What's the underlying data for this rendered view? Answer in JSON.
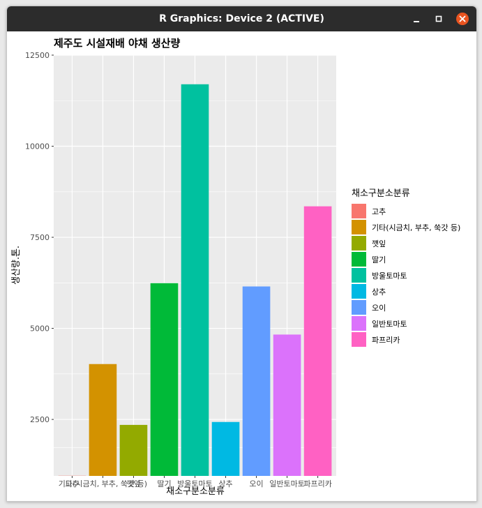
{
  "window": {
    "title": "R Graphics: Device 2 (ACTIVE)",
    "controls": [
      "minimize-icon",
      "maximize-icon",
      "close-icon"
    ],
    "colors": {
      "titlebar": "#2c2c2c",
      "close": "#e95420"
    }
  },
  "chart_data": {
    "type": "bar",
    "title": "제주도 시설재배 야채 생산량",
    "xlabel": "채소구분소분류",
    "ylabel": "생산량.톤.",
    "legend_title": "채소구분소분류",
    "legend_position": "right",
    "grid": true,
    "ylim": [
      950,
      12500
    ],
    "yticks": [
      2500,
      5000,
      7500,
      10000,
      12500
    ],
    "categories": [
      "고추",
      "기타(시금치, 부추, 쑥갓 등)",
      "깻잎",
      "딸기",
      "방울토마토",
      "상추",
      "오이",
      "일반토마토",
      "파프리카"
    ],
    "values": [
      955,
      4020,
      2350,
      6240,
      11700,
      2430,
      6150,
      4830,
      8350
    ],
    "colors": [
      "#F8766D",
      "#D39200",
      "#93AA00",
      "#00BA38",
      "#00C19F",
      "#00B9E3",
      "#619CFF",
      "#DB72FB",
      "#FF61C3"
    ]
  }
}
